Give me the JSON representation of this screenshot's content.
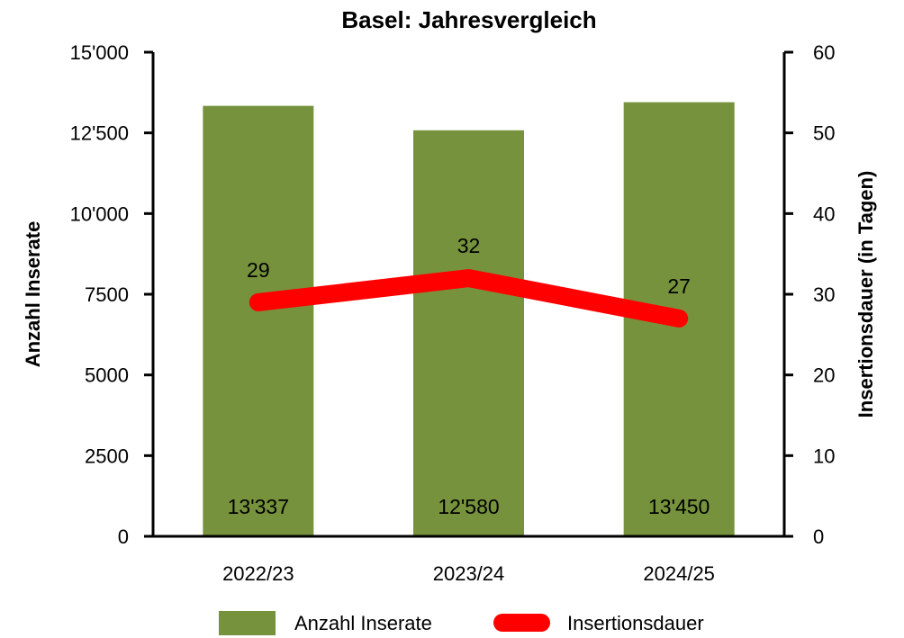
{
  "chart_data": {
    "type": "bar",
    "title": "Basel: Jahresvergleich",
    "categories": [
      "2022/23",
      "2023/24",
      "2024/25"
    ],
    "series": [
      {
        "name": "Anzahl Inserate",
        "kind": "bar",
        "axis": "left",
        "color": "#76923c",
        "values": [
          13337,
          12580,
          13450
        ],
        "data_labels": [
          "13'337",
          "12'580",
          "13'450"
        ]
      },
      {
        "name": "Insertionsdauer",
        "kind": "line",
        "axis": "right",
        "color": "#ff0000",
        "values": [
          29,
          32,
          27
        ],
        "data_labels": [
          "29",
          "32",
          "27"
        ]
      }
    ],
    "ylabel": "Anzahl Inserate",
    "ylim": [
      0,
      15000
    ],
    "yticks": [
      0,
      2500,
      5000,
      7500,
      10000,
      12500,
      15000
    ],
    "ytick_labels": [
      "0",
      "2500",
      "5000",
      "7500",
      "10'000",
      "12'500",
      "15'000"
    ],
    "y2label": "Insertionsdauer (in Tagen)",
    "y2lim": [
      0,
      60
    ],
    "y2ticks": [
      0,
      10,
      20,
      30,
      40,
      50,
      60
    ],
    "y2tick_labels": [
      "0",
      "10",
      "20",
      "30",
      "40",
      "50",
      "60"
    ],
    "grid": false,
    "legend": "bottom"
  }
}
